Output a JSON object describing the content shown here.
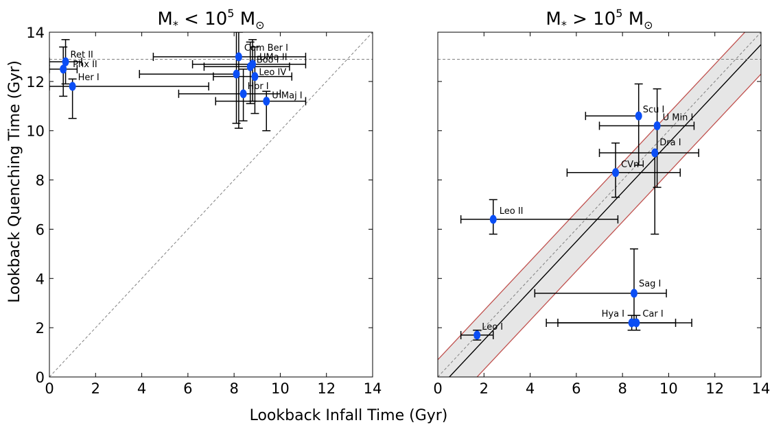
{
  "figure": {
    "xlabel": "Lookback Infall Time (Gyr)",
    "ylabel": "Lookback Quenching Time (Gyr)"
  },
  "chart_data": [
    {
      "type": "scatter",
      "title_base": "M",
      "title_sub": "*",
      "title_mid": " < 10",
      "title_sup": "5",
      "title_unit": " M",
      "title_unit_sub": "⊙",
      "xlim": [
        0,
        14
      ],
      "ylim": [
        0,
        14
      ],
      "xticks": [
        0,
        2,
        4,
        6,
        8,
        10,
        12,
        14
      ],
      "yticks": [
        0,
        2,
        4,
        6,
        8,
        10,
        12,
        14
      ],
      "reference_lines": [
        {
          "kind": "horizontal",
          "y": 12.9,
          "style": "dashed",
          "color": "#808080"
        },
        {
          "kind": "one-to-one",
          "style": "dashed",
          "color": "#808080"
        }
      ],
      "marker_color": "#0b4ef5",
      "points": [
        {
          "label": "Ret II",
          "x": 0.7,
          "y": 12.8,
          "xerr": [
            0.7,
            0.7
          ],
          "yerr": [
            0.9,
            0.9
          ]
        },
        {
          "label": "Phx II",
          "x": 0.6,
          "y": 12.5,
          "xerr": [
            0.6,
            0.6
          ],
          "yerr": [
            1.1,
            0.9
          ]
        },
        {
          "label": "Her I",
          "x": 1.0,
          "y": 11.8,
          "xerr": [
            1.0,
            5.9
          ],
          "yerr": [
            1.3,
            0.3
          ]
        },
        {
          "label": "Com Ber I",
          "x": 8.2,
          "y": 13.0,
          "xerr": [
            3.7,
            2.9
          ],
          "yerr": [
            2.9,
            1.0
          ]
        },
        {
          "label": "UMa II",
          "x": 8.8,
          "y": 12.7,
          "xerr": [
            2.6,
            2.3
          ],
          "yerr": [
            1.5,
            1.0
          ]
        },
        {
          "label": "Boo I",
          "x": 8.7,
          "y": 12.6,
          "xerr": [
            2.0,
            1.7
          ],
          "yerr": [
            1.5,
            1.0
          ]
        },
        {
          "label": "Leo IV",
          "x": 8.9,
          "y": 12.2,
          "xerr": [
            1.8,
            1.6
          ],
          "yerr": [
            1.5,
            1.2
          ]
        },
        {
          "label": "",
          "x": 8.1,
          "y": 12.3,
          "xerr": [
            4.2,
            0.1
          ],
          "yerr": [
            2.0,
            1.8
          ]
        },
        {
          "label": "Hor I",
          "x": 8.4,
          "y": 11.5,
          "xerr": [
            2.8,
            1.6
          ],
          "yerr": [
            1.1,
            1.0
          ]
        },
        {
          "label": "U Maj I",
          "x": 9.4,
          "y": 11.2,
          "xerr": [
            2.2,
            1.7
          ],
          "yerr": [
            1.2,
            0.4
          ]
        }
      ]
    },
    {
      "type": "scatter",
      "title_base": "M",
      "title_sub": "*",
      "title_mid": " > 10",
      "title_sup": "5",
      "title_unit": " M",
      "title_unit_sub": "⊙",
      "xlim": [
        0,
        14
      ],
      "ylim": [
        0,
        14
      ],
      "xticks": [
        0,
        2,
        4,
        6,
        8,
        10,
        12,
        14
      ],
      "yticks": [
        0,
        2,
        4,
        6,
        8,
        10,
        12,
        14
      ],
      "reference_lines": [
        {
          "kind": "horizontal",
          "y": 12.9,
          "style": "dashed",
          "color": "#808080"
        },
        {
          "kind": "one-to-one",
          "style": "dashed",
          "color": "#808080"
        }
      ],
      "fit": {
        "slope": 1.0,
        "intercept": -0.5,
        "band": 1.2,
        "line_color": "#000000",
        "band_fill": "#e6e6e6",
        "band_edge": "#c0504d"
      },
      "marker_color": "#0b4ef5",
      "points": [
        {
          "label": "Scu I",
          "x": 8.7,
          "y": 10.6,
          "xerr": [
            2.3,
            0.0
          ],
          "yerr": [
            2.0,
            1.3
          ]
        },
        {
          "label": "U Min I",
          "x": 9.5,
          "y": 10.2,
          "xerr": [
            2.5,
            1.6
          ],
          "yerr": [
            2.5,
            1.5
          ]
        },
        {
          "label": "Dra I",
          "x": 9.4,
          "y": 9.1,
          "xerr": [
            2.4,
            1.9
          ],
          "yerr": [
            3.3,
            0.0
          ]
        },
        {
          "label": "CVn I",
          "x": 7.7,
          "y": 8.3,
          "xerr": [
            2.1,
            2.8
          ],
          "yerr": [
            1.0,
            1.2
          ]
        },
        {
          "label": "Leo II",
          "x": 2.4,
          "y": 6.4,
          "xerr": [
            1.4,
            5.4
          ],
          "yerr": [
            0.6,
            0.8
          ]
        },
        {
          "label": "Sag I",
          "x": 8.5,
          "y": 3.4,
          "xerr": [
            4.3,
            1.4
          ],
          "yerr": [
            1.2,
            1.8
          ]
        },
        {
          "label": "Hya I",
          "x": 8.4,
          "y": 2.2,
          "xerr": [
            3.7,
            1.9
          ],
          "yerr": [
            0.3,
            0.3
          ]
        },
        {
          "label": "Car I",
          "x": 8.6,
          "y": 2.2,
          "xerr": [
            3.4,
            2.4
          ],
          "yerr": [
            0.3,
            0.3
          ]
        },
        {
          "label": "Leo I",
          "x": 1.7,
          "y": 1.7,
          "xerr": [
            0.7,
            0.7
          ],
          "yerr": [
            0.2,
            0.2
          ]
        }
      ]
    }
  ]
}
